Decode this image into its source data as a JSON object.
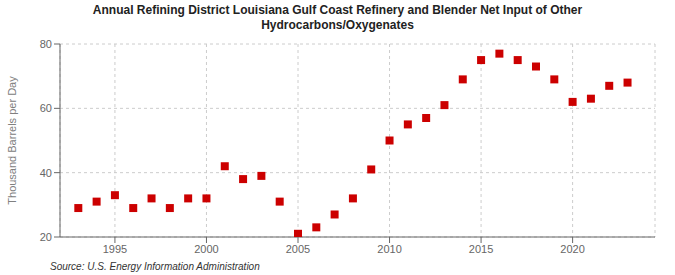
{
  "chart_data": {
    "type": "scatter",
    "title": "Annual Refining District Louisiana Gulf Coast Refinery and Blender Net Input of Other\nHydrocarbons/Oxygenates",
    "y_label": "Thousand Barrels per Day",
    "source": "Source: U.S. Energy Information Administration",
    "x": [
      1993,
      1994,
      1995,
      1996,
      1997,
      1998,
      1999,
      2000,
      2001,
      2002,
      2003,
      2004,
      2005,
      2006,
      2007,
      2008,
      2009,
      2010,
      2011,
      2012,
      2013,
      2014,
      2015,
      2016,
      2017,
      2018,
      2019,
      2020,
      2021,
      2022,
      2023
    ],
    "values": [
      29,
      31,
      33,
      29,
      32,
      29,
      32,
      32,
      42,
      38,
      39,
      31,
      21,
      23,
      27,
      32,
      41,
      50,
      55,
      57,
      61,
      69,
      75,
      77,
      75,
      73,
      69,
      62,
      63,
      67,
      68
    ],
    "color": "#cc0000",
    "marker": "square",
    "xlim": [
      1992,
      2024.5
    ],
    "ylim": [
      20,
      80
    ],
    "xticks": [
      1995,
      2000,
      2005,
      2010,
      2015,
      2020
    ],
    "yticks": [
      20,
      40,
      60,
      80
    ],
    "grid": true
  }
}
